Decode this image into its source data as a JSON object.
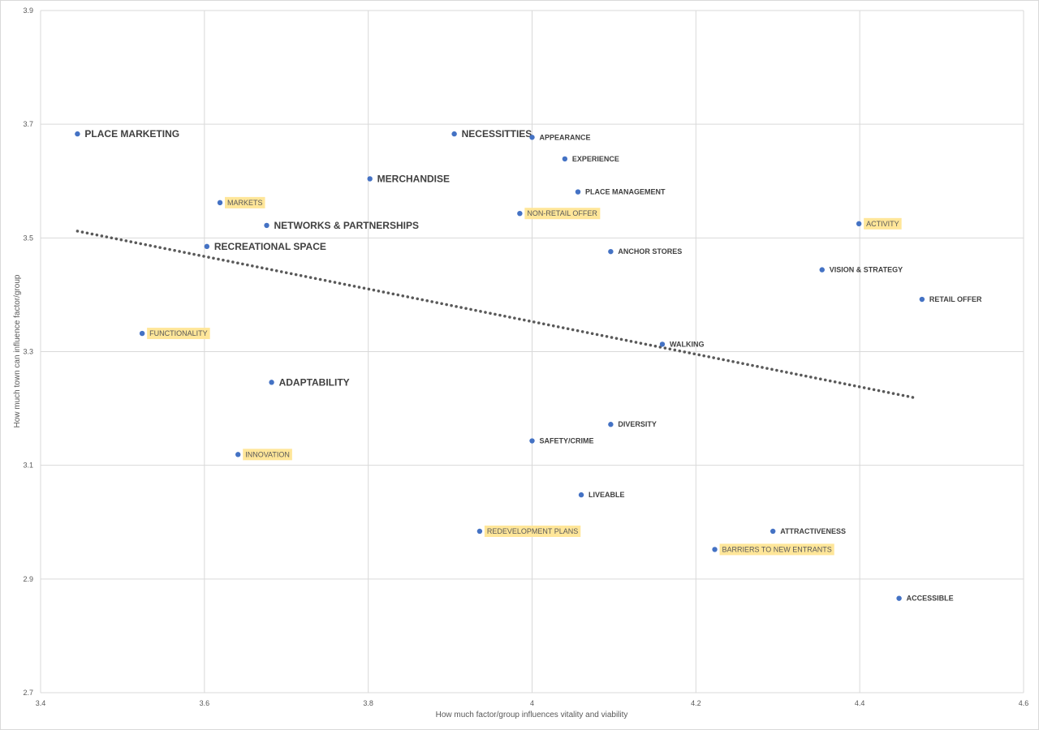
{
  "chart_data": {
    "type": "scatter",
    "title": "",
    "xlabel": "How much factor/group influences vitality and viability",
    "ylabel": "How much town can influence factor/group",
    "xlim": [
      3.4,
      4.6
    ],
    "ylim": [
      2.7,
      3.9
    ],
    "x_ticks": [
      "3.4",
      "3.6",
      "3.8",
      "4",
      "4.2",
      "4.4",
      "4.6"
    ],
    "y_ticks": [
      "2.7",
      "2.9",
      "3.1",
      "3.3",
      "3.5",
      "3.7",
      "3.9"
    ],
    "grid": true,
    "legend": "none",
    "marker_color": "#4472c4",
    "highlight_color": "#ffe699",
    "trendline": {
      "style": "dotted",
      "color": "#595959",
      "x_start": 3.445,
      "y_start": 3.512,
      "x_end": 4.47,
      "y_end": 3.218
    },
    "points": [
      {
        "label": "PLACE MARKETING",
        "x": 3.445,
        "y": 3.683,
        "style": "large"
      },
      {
        "label": "NECESSITTIES",
        "x": 3.905,
        "y": 3.683,
        "style": "large"
      },
      {
        "label": "APPEARANCE",
        "x": 4.0,
        "y": 3.677,
        "style": "small"
      },
      {
        "label": "EXPERIENCE",
        "x": 4.04,
        "y": 3.639,
        "style": "small"
      },
      {
        "label": "MERCHANDISE",
        "x": 3.802,
        "y": 3.604,
        "style": "large"
      },
      {
        "label": "PLACE MANAGEMENT",
        "x": 4.056,
        "y": 3.581,
        "style": "small"
      },
      {
        "label": "MARKETS",
        "x": 3.619,
        "y": 3.562,
        "style": "highlight"
      },
      {
        "label": "NON-RETAIL OFFER",
        "x": 3.985,
        "y": 3.543,
        "style": "highlight"
      },
      {
        "label": "ACTIVITY",
        "x": 4.399,
        "y": 3.525,
        "style": "highlight"
      },
      {
        "label": "NETWORKS & PARTNERSHIPS",
        "x": 3.676,
        "y": 3.522,
        "style": "large"
      },
      {
        "label": "RECREATIONAL SPACE",
        "x": 3.603,
        "y": 3.485,
        "style": "large"
      },
      {
        "label": "ANCHOR STORES",
        "x": 4.096,
        "y": 3.476,
        "style": "small"
      },
      {
        "label": "VISION & STRATEGY",
        "x": 4.354,
        "y": 3.444,
        "style": "small"
      },
      {
        "label": "RETAIL OFFER",
        "x": 4.476,
        "y": 3.392,
        "style": "small"
      },
      {
        "label": "FUNCTIONALITY",
        "x": 3.524,
        "y": 3.332,
        "style": "highlight"
      },
      {
        "label": "WALKING",
        "x": 4.159,
        "y": 3.313,
        "style": "small"
      },
      {
        "label": "ADAPTABILITY",
        "x": 3.682,
        "y": 3.246,
        "style": "large"
      },
      {
        "label": "DIVERSITY",
        "x": 4.096,
        "y": 3.172,
        "style": "small"
      },
      {
        "label": "SAFETY/CRIME",
        "x": 4.0,
        "y": 3.143,
        "style": "small"
      },
      {
        "label": "INNOVATION",
        "x": 3.641,
        "y": 3.119,
        "style": "highlight"
      },
      {
        "label": "LIVEABLE",
        "x": 4.06,
        "y": 3.048,
        "style": "small"
      },
      {
        "label": "REDEVELOPMENT PLANS",
        "x": 3.936,
        "y": 2.984,
        "style": "highlight"
      },
      {
        "label": "ATTRACTIVENESS",
        "x": 4.294,
        "y": 2.984,
        "style": "small"
      },
      {
        "label": "BARRIERS TO NEW ENTRANTS",
        "x": 4.223,
        "y": 2.952,
        "style": "highlight"
      },
      {
        "label": "ACCESSIBLE",
        "x": 4.448,
        "y": 2.866,
        "style": "small"
      }
    ]
  }
}
